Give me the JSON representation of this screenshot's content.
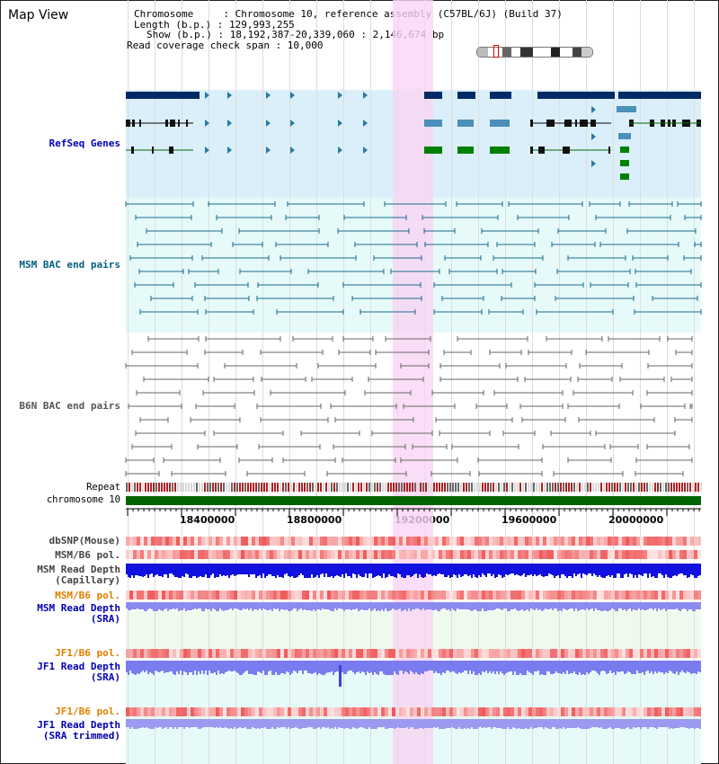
{
  "title": "Map View",
  "info": {
    "line1": "Chromosome     : Chromosome 10, reference assembly (C57BL/6J) (Build 37)",
    "line2": "Length (b.p.) : 129,993,255",
    "line3": "Show (b.p.) : 18,192,387-20,339,060 : 2,146,674 bp",
    "line4": "Read coverage check span : 10,000"
  },
  "tracks": {
    "refseq": "RefSeq Genes",
    "msm_bac": "MSM BAC end pairs",
    "b6n_bac": "B6N BAC end pairs",
    "repeat": "Repeat",
    "chromosome": "chromosome 10",
    "dbsnp": "dbSNP(Mouse)",
    "msm_pol": "MSM/B6 pol.",
    "msm_depth_cap": "MSM Read Depth\n(Capillary)",
    "msm_pol2": "MSM/B6 pol.",
    "msm_depth_sra": "MSM Read Depth\n(SRA)",
    "jf1_pol": "JF1/B6 pol.",
    "jf1_depth_sra": "JF1 Read Depth\n(SRA)",
    "jf1_pol2": "JF1/B6 pol.",
    "jf1_depth_trim": "JF1 Read Depth\n(SRA trimmed)"
  },
  "axis": {
    "ticks": [
      "18400000",
      "18800000",
      "19200000",
      "19600000",
      "20000000"
    ]
  },
  "colors": {
    "refseq_bg": "#dbeffa",
    "msm_bg": "#e6fafa",
    "refseq_label": "#0000c0",
    "msm_label": "#006080",
    "b6n_label": "#444444",
    "orange_label": "#e08000",
    "blue_label": "#0000b0"
  }
}
